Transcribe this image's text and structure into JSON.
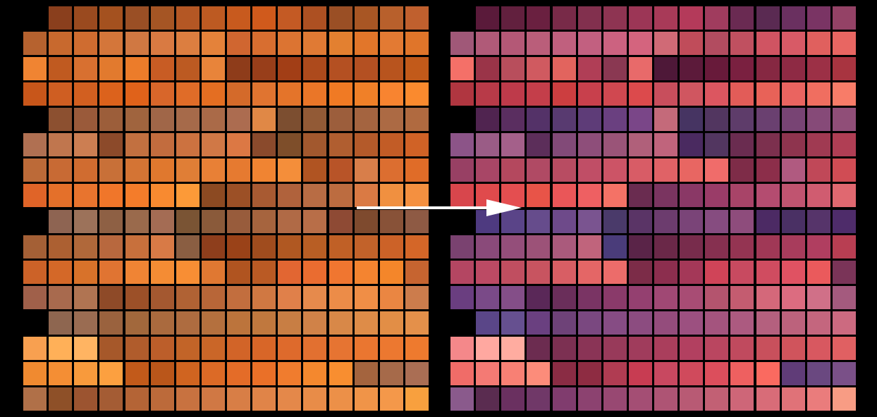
{
  "diagram": {
    "arrow_color": "#ffffff",
    "background": "#000000",
    "left_grid": {
      "rows": [
        [
          null,
          "#8a3f1d",
          "#9a4a1f",
          "#a4511f",
          "#9a4f25",
          "#a55524",
          "#b45724",
          "#bd5a22",
          "#c85a1e",
          "#d05a1c",
          "#c45a24",
          "#ad5022",
          "#9a4f25",
          "#a85624",
          "#b8602c",
          "#c0602e"
        ],
        [
          "#b6622f",
          "#c8692e",
          "#cf6c30",
          "#d4763a",
          "#d07842",
          "#d97a42",
          "#dc7e40",
          "#e4823a",
          "#d06630",
          "#d86e30",
          "#dc7432",
          "#e07a34",
          "#e38030",
          "#e2762a",
          "#e37a33",
          "#e0752a"
        ],
        [
          "#f08432",
          "#c05a20",
          "#d87030",
          "#e27a2e",
          "#ec7c2a",
          "#c85c24",
          "#bc5a22",
          "#e8843a",
          "#8e3c1a",
          "#983e1a",
          "#a23e16",
          "#ad4a1c",
          "#b45022",
          "#b45022",
          "#b8541e",
          "#c25a1a"
        ],
        [
          "#c8561a",
          "#cf5e22",
          "#d25f20",
          "#dc621c",
          "#e0621a",
          "#d8662a",
          "#e06c28",
          "#e46e22",
          "#d46a2a",
          "#e07430",
          "#e4742a",
          "#ea7628",
          "#f07a24",
          "#f08028",
          "#f88430",
          "#fa8a2e"
        ],
        [
          null,
          "#8c5030",
          "#9a5a3a",
          "#9c5e3a",
          "#a0643e",
          "#a06648",
          "#a66a4a",
          "#aa6a48",
          "#ac6c50",
          "#e08846",
          "#7c4e30",
          "#925a36",
          "#9c5e3c",
          "#a46440",
          "#ac6a44",
          "#b06a40"
        ],
        [
          "#b07052",
          "#c0764e",
          "#cc7e52",
          "#8c4a2a",
          "#c27040",
          "#c26c3e",
          "#cc7240",
          "#d07846",
          "#dc7844",
          "#8a4a2c",
          "#7e4e2a",
          "#a2582e",
          "#b05e30",
          "#b45a2a",
          "#c25c26",
          "#d06226"
        ],
        [
          "#bc6a38",
          "#c86a34",
          "#d06c30",
          "#c87038",
          "#d47434",
          "#e0782e",
          "#e07e36",
          "#e88036",
          "#e67a30",
          "#f08432",
          "#f48e3a",
          "#b05422",
          "#b85428",
          "#d87e4a",
          "#dc6e30",
          "#e06c28"
        ],
        [
          "#e06428",
          "#e4702a",
          "#e8742e",
          "#f0762a",
          "#f47c2a",
          "#f88a30",
          "#fc9a38",
          "#8c4a22",
          "#9c5026",
          "#a85a32",
          "#b0623c",
          "#b86c44",
          "#bc6c40",
          "#da7a44",
          "#f09040",
          "#f49040"
        ],
        [
          null,
          "#8e6452",
          "#9c725a",
          "#8e6044",
          "#9a6a4c",
          "#a46c54",
          "#7a5434",
          "#8a5a3a",
          "#985c3c",
          "#a6643e",
          "#b06a46",
          "#b86e48",
          "#8e4a34",
          "#7e4a2e",
          "#885238",
          "#8e5a44"
        ],
        [
          "#a46036",
          "#ac6032",
          "#b0683a",
          "#b8683e",
          "#c8703c",
          "#d87a46",
          "#8a5e42",
          "#8e3e1c",
          "#9a4218",
          "#a04c1e",
          "#b05822",
          "#b85e24",
          "#c06026",
          "#c2622a",
          "#cc6228",
          "#d46628"
        ],
        [
          "#cc6228",
          "#d46828",
          "#d8722a",
          "#e07432",
          "#f08434",
          "#f48c34",
          "#f88e34",
          "#e07832",
          "#b05420",
          "#ba5a24",
          "#e26632",
          "#ea6c30",
          "#f07630",
          "#f48430",
          "#f4862a",
          "#c66430"
        ],
        [
          "#a0604a",
          "#a86a4e",
          "#b07452",
          "#8e4a28",
          "#9c5028",
          "#a45830",
          "#b06234",
          "#b86638",
          "#c26e3e",
          "#d07842",
          "#e0804a",
          "#e68a4c",
          "#ec8c48",
          "#f08e46",
          "#ea8642",
          "#cc7c4c"
        ],
        [
          null,
          "#8e6650",
          "#9a6c52",
          "#9a623e",
          "#a2683c",
          "#aa6a3e",
          "#ae6c40",
          "#b4703e",
          "#bc743c",
          "#c0783e",
          "#c87e44",
          "#d08248",
          "#d88848",
          "#de8c48",
          "#e28e46",
          "#e4904a"
        ],
        [
          "#f8a050",
          "#ffb058",
          "#ffb462",
          "#a6582a",
          "#b05c2c",
          "#bc5e2a",
          "#c26428",
          "#ca6628",
          "#d26428",
          "#d86628",
          "#de6a2c",
          "#e27030",
          "#e67432",
          "#ea7630",
          "#ec7830",
          "#ee7a2e"
        ],
        [
          "#f08a30",
          "#f48e34",
          "#f89a3c",
          "#fca040",
          "#c25a1a",
          "#ba561a",
          "#d06420",
          "#dc6a26",
          "#e46c28",
          "#ea7028",
          "#f07c2e",
          "#f4882e",
          "#f88e30",
          "#a4643e",
          "#a66a4a",
          "#aa6e54"
        ],
        [
          "#b07048",
          "#8e5028",
          "#9c5430",
          "#a45c34",
          "#b46436",
          "#bc6a3a",
          "#c87240",
          "#d07844",
          "#d87e46",
          "#e08448",
          "#e4884a",
          "#e88c48",
          "#ec9048",
          "#f09448",
          "#f4984a",
          "#f8a03e"
        ]
      ]
    },
    "right_grid": {
      "rows": [
        [
          null,
          "#5a1a3a",
          "#62203e",
          "#6a2040",
          "#782a48",
          "#82304e",
          "#8e3452",
          "#9c3656",
          "#a83a58",
          "#b43a5a",
          "#a03c5e",
          "#6a2a52",
          "#5a2a52",
          "#6a3060",
          "#7a3464",
          "#944266"
        ],
        [
          "#a05878",
          "#b05a78",
          "#b45876",
          "#ba5e7a",
          "#c0607e",
          "#c26080",
          "#cc6280",
          "#d4647e",
          "#d06a76",
          "#c04c5a",
          "#b24c60",
          "#c05060",
          "#d05462",
          "#d85a66",
          "#e0605e",
          "#e86662"
        ],
        [
          "#f47068",
          "#9a3448",
          "#b84e5c",
          "#d05a60",
          "#e2645e",
          "#b03e56",
          "#8a3852",
          "#e86a6a",
          "#4e1838",
          "#5c1a3a",
          "#681a3a",
          "#7a2040",
          "#862842",
          "#8e2a44",
          "#9c3046",
          "#a83440"
        ],
        [
          "#b03640",
          "#b83a48",
          "#be3a4a",
          "#c43e4a",
          "#cc3e40",
          "#c8404c",
          "#d04850",
          "#dc4a4c",
          "#c84e5c",
          "#d05660",
          "#dc5660",
          "#e25c58",
          "#e86258",
          "#ea6460",
          "#f06e60",
          "#f87c68"
        ],
        [
          null,
          "#502450",
          "#5a2e60",
          "#543268",
          "#583a70",
          "#5e3c78",
          "#6a4080",
          "#7a4688",
          "#c46a7a",
          "#463462",
          "#523660",
          "#5e3c6a",
          "#6a4070",
          "#784474",
          "#864a78",
          "#904e78"
        ],
        [
          "#8c5488",
          "#9a5c86",
          "#a4608a",
          "#5c2e5a",
          "#824a78",
          "#8e4e7a",
          "#9a5478",
          "#b0607a",
          "#c0647c",
          "#4a2a60",
          "#523660",
          "#6a2c50",
          "#7c304e",
          "#8e344e",
          "#a03a52",
          "#b03e54"
        ],
        [
          "#984064",
          "#a84666",
          "#b4485e",
          "#b04a64",
          "#b84c62",
          "#c04e66",
          "#cc5466",
          "#d85c66",
          "#e06266",
          "#e86662",
          "#f06c6a",
          "#7e2c48",
          "#8c2e4a",
          "#b05a80",
          "#c04858",
          "#d04c54"
        ],
        [
          "#d8464c",
          "#e04a4c",
          "#e44e50",
          "#e85448",
          "#ea5658",
          "#ee6062",
          "#f47266",
          "#6a2c50",
          "#7a3460",
          "#8a3866",
          "#9a3c68",
          "#a84468",
          "#b44c70",
          "#c05470",
          "#d05c70",
          "#e06870"
        ],
        [
          null,
          "#4e3a80",
          "#5a4488",
          "#664c8c",
          "#6e4a8a",
          "#7a5490",
          "#4a3a6a",
          "#5a3466",
          "#6c3c6e",
          "#7a4478",
          "#864c80",
          "#8e4c7c",
          "#4c2a64",
          "#4a3064",
          "#56346a",
          "#4e2c6a"
        ],
        [
          "#7a4270",
          "#8a4a7a",
          "#944e7a",
          "#9c5278",
          "#aa5a7c",
          "#c0647c",
          "#4a3c7a",
          "#5a2448",
          "#6a2848",
          "#782c4c",
          "#863050",
          "#943452",
          "#a03856",
          "#a83c5c",
          "#b03e60",
          "#b83e52"
        ],
        [
          "#b44662",
          "#bc4a64",
          "#c04e60",
          "#c85460",
          "#d85e64",
          "#e46666",
          "#ec6c6a",
          "#7c2c48",
          "#8c2e4e",
          "#a43858",
          "#d04458",
          "#c84a60",
          "#d04c60",
          "#e05262",
          "#ea5a5c",
          "#7a3458"
        ],
        [
          "#6a3e80",
          "#7a4a88",
          "#844e88",
          "#5a2858",
          "#6a2e5a",
          "#7a3464",
          "#8a3a6a",
          "#944070",
          "#a04874",
          "#a84c74",
          "#b4546e",
          "#c45c70",
          "#d4687a",
          "#dc6c80",
          "#d07088",
          "#a45a7e"
        ],
        [
          null,
          "#5a4688",
          "#665090",
          "#6a4080",
          "#6e4278",
          "#7a4880",
          "#864c84",
          "#8c4c80",
          "#944c7c",
          "#9c5080",
          "#a4547e",
          "#ac5a80",
          "#b4607e",
          "#bc627c",
          "#c4667e",
          "#cc6a80"
        ],
        [
          "#f4888a",
          "#ffa8a0",
          "#ffaca0",
          "#6c2c50",
          "#7c3052",
          "#8a3456",
          "#983a5a",
          "#a03c5c",
          "#aa3e5c",
          "#b24060",
          "#ba4660",
          "#c04a5e",
          "#c8505c",
          "#d0545c",
          "#d85860",
          "#e06062"
        ],
        [
          "#f06c68",
          "#f47a74",
          "#f88074",
          "#fc8c7a",
          "#8a2c44",
          "#8e2c42",
          "#b03c52",
          "#c83c52",
          "#c84860",
          "#d04a5c",
          "#dc4e5c",
          "#ee6060",
          "#fa6a60",
          "#603c78",
          "#6a4880",
          "#7a5088"
        ],
        [
          "#8a5a8c",
          "#5a2c50",
          "#6a3060",
          "#703868",
          "#803c6e",
          "#8c4270",
          "#984872",
          "#a44e74",
          "#ae5474",
          "#b85a74",
          "#c26074",
          "#ce6678",
          "#d86c78",
          "#e07278",
          "#ea7c7c",
          "#f89c84"
        ]
      ]
    }
  }
}
